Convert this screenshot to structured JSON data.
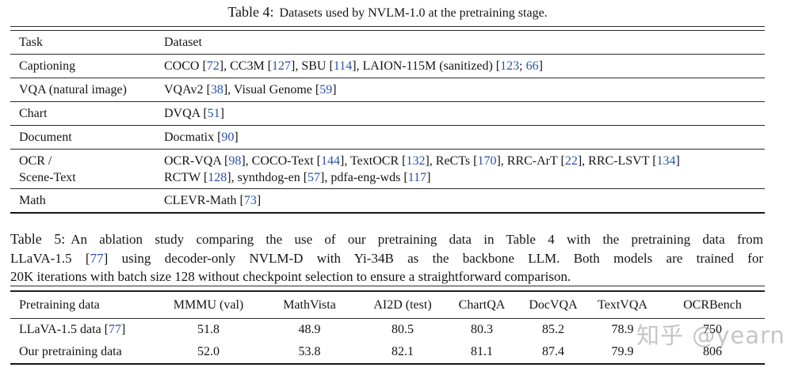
{
  "table4": {
    "title_label": "Table 4:",
    "title_text": "Datasets used by NVLM-1.0 at the pretraining stage.",
    "columns": [
      "Task",
      "Dataset"
    ],
    "rows": [
      {
        "task": "Captioning",
        "dataset": "COCO [72], CC3M [127], SBU [114], LAION-115M (sanitized) [123; 66]"
      },
      {
        "task": "VQA (natural image)",
        "dataset": "VQAv2 [38], Visual Genome [59]"
      },
      {
        "task": "Chart",
        "dataset": "DVQA [51]"
      },
      {
        "task": "Document",
        "dataset": "Docmatix [90]"
      },
      {
        "task": "OCR /\nScene-Text",
        "dataset": "OCR-VQA [98], COCO-Text [144], TextOCR [132], ReCTs [170], RRC-ArT [22], RRC-LSVT [134]\nRCTW [128], synthdog-en [57], pdfa-eng-wds [117]"
      },
      {
        "task": "Math",
        "dataset": "CLEVR-Math [73]"
      }
    ]
  },
  "table5": {
    "caption_label": "Table 5:",
    "caption_lines": [
      "An ablation study comparing the use of our pretraining data in Table 4 with the pretraining data from",
      "LLaVA-1.5 [77] using decoder-only NVLM-D with Yi-34B as the backbone LLM. Both models are trained for",
      "20K iterations with batch size 128 without checkpoint selection to ensure a straightforward comparison."
    ],
    "columns": [
      "Pretraining data",
      "MMMU (val)",
      "MathVista",
      "AI2D (test)",
      "ChartQA",
      "DocVQA",
      "TextVQA",
      "OCRBench"
    ],
    "rows": [
      {
        "label": "LLaVA-1.5 data [77]",
        "values": [
          "51.8",
          "48.9",
          "80.5",
          "80.3",
          "85.2",
          "78.9",
          "750"
        ]
      },
      {
        "label": "Our pretraining data",
        "values": [
          "52.0",
          "53.8",
          "82.1",
          "81.1",
          "87.4",
          "79.9",
          "806"
        ]
      }
    ]
  },
  "watermark": {
    "text": "知乎 @yearn"
  },
  "colors": {
    "citation": "#2b50a8",
    "text": "#151515",
    "rule": "#2b2b2b",
    "watermark": "#c6c6c6"
  }
}
